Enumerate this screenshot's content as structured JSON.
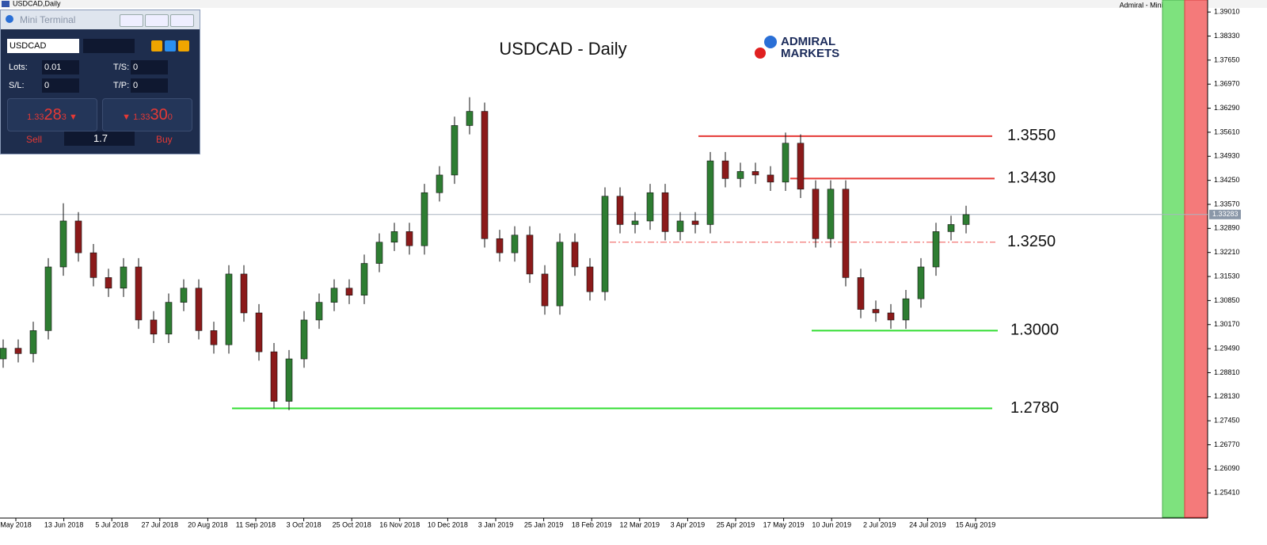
{
  "window": {
    "caption": "USDCAD,Daily",
    "right_caption": "Admiral - Mini Terminal"
  },
  "terminal": {
    "title": "Mini Terminal",
    "symbol": "USDCAD",
    "lots_label": "Lots:",
    "lots": "0.01",
    "ts_label": "T/S:",
    "ts": "0",
    "sl_label": "S/L:",
    "sl": "0",
    "tp_label": "T/P:",
    "tp": "0",
    "sell": {
      "prefix": "1.33",
      "big": "28",
      "small": "3"
    },
    "buy": {
      "prefix": "1.33",
      "big": "30",
      "small": "0"
    },
    "sell_label": "Sell",
    "spread": "1.7",
    "buy_label": "Buy"
  },
  "logo": {
    "line1": "ADMIRAL",
    "line2": "MARKETS"
  },
  "chart_data": {
    "type": "candlestick",
    "title": "USDCAD - Daily",
    "up_color": "#2e7d32",
    "down_color": "#8b1a1a",
    "open": [
      1.292,
      1.295,
      1.2935,
      1.3,
      1.318,
      1.331,
      1.322,
      1.315,
      1.312,
      1.318,
      1.303,
      1.299,
      1.308,
      1.312,
      1.3,
      1.296,
      1.316,
      1.305,
      1.294,
      1.28,
      1.292,
      1.303,
      1.308,
      1.312,
      1.31,
      1.319,
      1.325,
      1.328,
      1.324,
      1.339,
      1.344,
      1.358,
      1.362,
      1.326,
      1.322,
      1.327,
      1.316,
      1.307,
      1.325,
      1.318,
      1.311,
      1.338,
      1.33,
      1.331,
      1.339,
      1.328,
      1.331,
      1.33,
      1.348,
      1.343,
      1.345,
      1.344,
      1.342,
      1.353,
      1.34,
      1.326,
      1.34,
      1.315,
      1.306,
      1.305,
      1.303,
      1.309,
      1.318,
      1.328,
      1.33
    ],
    "high": [
      1.2975,
      1.2975,
      1.3025,
      1.3205,
      1.336,
      1.3335,
      1.3245,
      1.3175,
      1.3205,
      1.3205,
      1.3055,
      1.3105,
      1.3145,
      1.3145,
      1.3025,
      1.3185,
      1.3185,
      1.3075,
      1.2965,
      1.2945,
      1.3055,
      1.3105,
      1.3145,
      1.3145,
      1.3215,
      1.3275,
      1.3305,
      1.3305,
      1.3415,
      1.3465,
      1.3605,
      1.366,
      1.3645,
      1.3285,
      1.3295,
      1.3295,
      1.3185,
      1.3275,
      1.3275,
      1.3205,
      1.3405,
      1.3405,
      1.3335,
      1.3415,
      1.3415,
      1.3335,
      1.3335,
      1.3505,
      1.3505,
      1.3475,
      1.3475,
      1.3465,
      1.356,
      1.3555,
      1.3425,
      1.3425,
      1.3425,
      1.3175,
      1.3085,
      1.3075,
      1.3115,
      1.3205,
      1.3305,
      1.3325,
      1.3353
    ],
    "low": [
      1.2895,
      1.291,
      1.291,
      1.2975,
      1.3155,
      1.3195,
      1.3125,
      1.3095,
      1.3095,
      1.3005,
      1.2965,
      1.2965,
      1.3055,
      1.2975,
      1.2935,
      1.2935,
      1.3025,
      1.2915,
      1.278,
      1.2775,
      1.2895,
      1.3005,
      1.3055,
      1.3075,
      1.3075,
      1.3165,
      1.3225,
      1.3215,
      1.3215,
      1.3365,
      1.3415,
      1.3555,
      1.3235,
      1.3195,
      1.3195,
      1.3135,
      1.3045,
      1.3045,
      1.3155,
      1.3085,
      1.3085,
      1.3275,
      1.3275,
      1.3285,
      1.3255,
      1.3255,
      1.3275,
      1.3275,
      1.3405,
      1.3405,
      1.3415,
      1.3395,
      1.3395,
      1.3375,
      1.3235,
      1.3235,
      1.3125,
      1.3035,
      1.3025,
      1.3005,
      1.3005,
      1.3065,
      1.3155,
      1.3255,
      1.3275
    ],
    "close": [
      1.295,
      1.2935,
      1.3,
      1.318,
      1.331,
      1.322,
      1.315,
      1.312,
      1.318,
      1.303,
      1.299,
      1.308,
      1.312,
      1.3,
      1.296,
      1.316,
      1.305,
      1.294,
      1.28,
      1.292,
      1.303,
      1.308,
      1.312,
      1.31,
      1.319,
      1.325,
      1.328,
      1.324,
      1.339,
      1.344,
      1.358,
      1.362,
      1.326,
      1.322,
      1.327,
      1.316,
      1.307,
      1.325,
      1.318,
      1.311,
      1.338,
      1.33,
      1.331,
      1.339,
      1.328,
      1.331,
      1.33,
      1.348,
      1.343,
      1.345,
      1.344,
      1.342,
      1.353,
      1.34,
      1.326,
      1.34,
      1.315,
      1.306,
      1.305,
      1.303,
      1.309,
      1.318,
      1.328,
      1.33,
      1.3328
    ],
    "xtick_labels": [
      "May 2018",
      "13 Jun 2018",
      "5 Jul 2018",
      "27 Jul 2018",
      "20 Aug 2018",
      "11 Sep 2018",
      "3 Oct 2018",
      "25 Oct 2018",
      "16 Nov 2018",
      "10 Dec 2018",
      "3 Jan 2019",
      "25 Jan 2019",
      "18 Feb 2019",
      "12 Mar 2019",
      "3 Apr 2019",
      "25 Apr 2019",
      "17 May 2019",
      "10 Jun 2019",
      "2 Jul 2019",
      "24 Jul 2019",
      "15 Aug 2019"
    ],
    "ylim": [
      1.2472,
      1.3935
    ],
    "yticks": [
      {
        "value": 1.3901,
        "label": "1.39010"
      },
      {
        "value": 1.3833,
        "label": "1.38330"
      },
      {
        "value": 1.3765,
        "label": "1.37650"
      },
      {
        "value": 1.3697,
        "label": "1.36970"
      },
      {
        "value": 1.3629,
        "label": "1.36290"
      },
      {
        "value": 1.3561,
        "label": "1.35610"
      },
      {
        "value": 1.3493,
        "label": "1.34930"
      },
      {
        "value": 1.3425,
        "label": "1.34250"
      },
      {
        "value": 1.3357,
        "label": "1.33570"
      },
      {
        "value": 1.3289,
        "label": "1.32890"
      },
      {
        "value": 1.3221,
        "label": "1.32210"
      },
      {
        "value": 1.3153,
        "label": "1.31530"
      },
      {
        "value": 1.3085,
        "label": "1.30850"
      },
      {
        "value": 1.3017,
        "label": "1.30170"
      },
      {
        "value": 1.2949,
        "label": "1.29490"
      },
      {
        "value": 1.2881,
        "label": "1.28810"
      },
      {
        "value": 1.2813,
        "label": "1.28130"
      },
      {
        "value": 1.2745,
        "label": "1.27450"
      },
      {
        "value": 1.2677,
        "label": "1.26770"
      },
      {
        "value": 1.2609,
        "label": "1.26090"
      },
      {
        "value": 1.2541,
        "label": "1.25410"
      }
    ],
    "current_price": 1.33283,
    "levels": [
      {
        "value": 1.355,
        "label": "1.3550",
        "color": "#e53935",
        "style": "solid"
      },
      {
        "value": 1.343,
        "label": "1.3430",
        "color": "#e53935",
        "style": "solid"
      },
      {
        "value": 1.325,
        "label": "1.3250",
        "color": "#ef5350",
        "style": "dashdot"
      },
      {
        "value": 1.3,
        "label": "1.3000",
        "color": "#33dd33",
        "style": "solid"
      },
      {
        "value": 1.278,
        "label": "1.2780",
        "color": "#33dd33",
        "style": "solid"
      }
    ]
  }
}
